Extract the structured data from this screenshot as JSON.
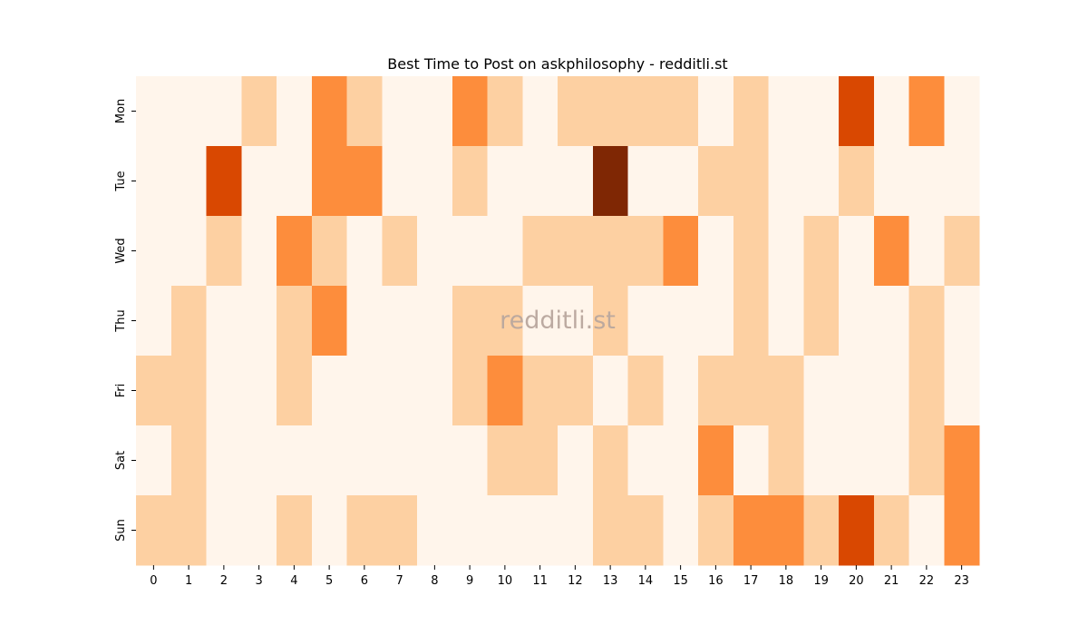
{
  "chart_data": {
    "type": "heatmap",
    "title": "Best Time to Post on askphilosophy - redditli.st",
    "watermark": "redditli.st",
    "x_categories": [
      "0",
      "1",
      "2",
      "3",
      "4",
      "5",
      "6",
      "7",
      "8",
      "9",
      "10",
      "11",
      "12",
      "13",
      "14",
      "15",
      "16",
      "17",
      "18",
      "19",
      "20",
      "21",
      "22",
      "23"
    ],
    "y_categories": [
      "Mon",
      "Tue",
      "Wed",
      "Thu",
      "Fri",
      "Sat",
      "Sun"
    ],
    "values": [
      [
        0,
        0,
        0,
        1,
        0,
        2,
        1,
        0,
        0,
        2,
        1,
        0,
        1,
        1,
        1,
        1,
        0,
        1,
        0,
        0,
        3,
        0,
        2,
        0
      ],
      [
        0,
        0,
        3,
        0,
        0,
        2,
        2,
        0,
        0,
        1,
        0,
        0,
        0,
        4,
        0,
        0,
        1,
        1,
        0,
        0,
        1,
        0,
        0,
        0
      ],
      [
        0,
        0,
        1,
        0,
        2,
        1,
        0,
        1,
        0,
        0,
        0,
        1,
        1,
        1,
        1,
        2,
        0,
        1,
        0,
        1,
        0,
        2,
        0,
        1
      ],
      [
        0,
        1,
        0,
        0,
        1,
        2,
        0,
        0,
        0,
        1,
        1,
        0,
        0,
        1,
        0,
        0,
        0,
        1,
        0,
        1,
        0,
        0,
        1,
        0
      ],
      [
        1,
        1,
        0,
        0,
        1,
        0,
        0,
        0,
        0,
        1,
        2,
        1,
        1,
        0,
        1,
        0,
        1,
        1,
        1,
        0,
        0,
        0,
        1,
        0
      ],
      [
        0,
        1,
        0,
        0,
        0,
        0,
        0,
        0,
        0,
        0,
        1,
        1,
        0,
        1,
        0,
        0,
        2,
        0,
        1,
        0,
        0,
        0,
        1,
        2
      ],
      [
        1,
        1,
        0,
        0,
        1,
        0,
        1,
        1,
        0,
        0,
        0,
        0,
        0,
        1,
        1,
        0,
        1,
        2,
        2,
        1,
        3,
        1,
        0,
        2
      ]
    ],
    "vmin": 0,
    "vmax": 4,
    "colormap": [
      "#fff5eb",
      "#fdd0a2",
      "#fd8d3c",
      "#d94801",
      "#7f2704"
    ],
    "colorbar": false,
    "grid": false
  }
}
